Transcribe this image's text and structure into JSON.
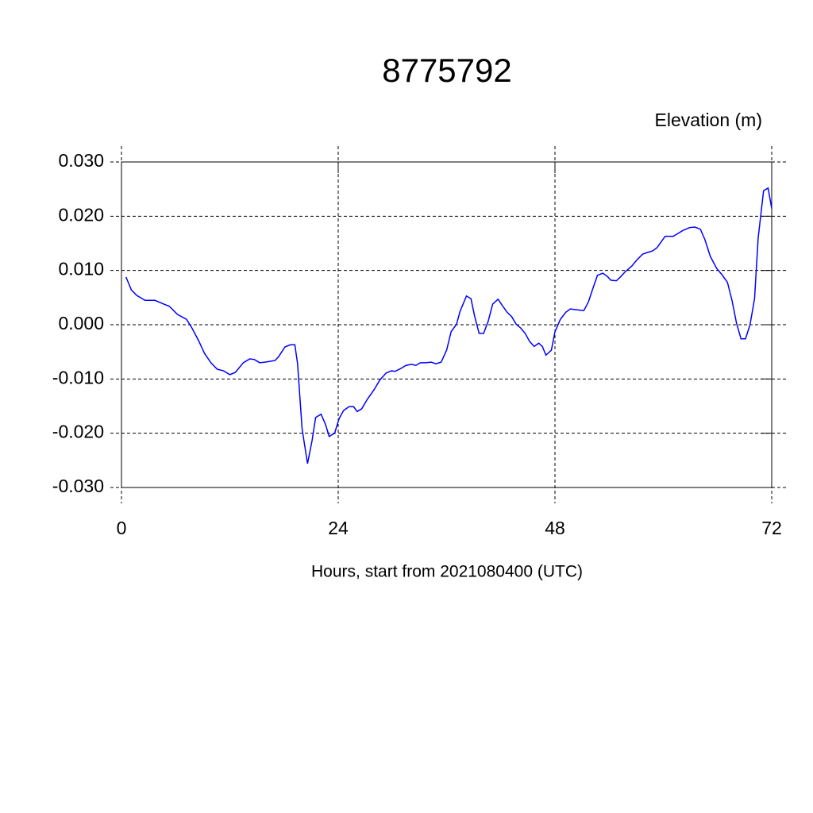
{
  "chart_data": {
    "type": "line",
    "title": "8775792",
    "subtitle": "Elevation (m)",
    "xlabel": "Hours, start from 2021080400 (UTC)",
    "xlim": [
      0,
      72
    ],
    "xticks": [
      0,
      24,
      48,
      72
    ],
    "ylim": [
      -0.03,
      0.03
    ],
    "yticks": [
      {
        "value": -0.03,
        "label": "-0.030"
      },
      {
        "value": -0.02,
        "label": "-0.020"
      },
      {
        "value": -0.01,
        "label": "-0.010"
      },
      {
        "value": 0,
        "label": "0.000"
      },
      {
        "value": 0.01,
        "label": "0.010"
      },
      {
        "value": 0.02,
        "label": "0.020"
      },
      {
        "value": 0.03,
        "label": "0.030"
      }
    ],
    "grid": true,
    "x": [
      0.5,
      1.1,
      1.7,
      2.6,
      3.7,
      4.7,
      5.3,
      6.2,
      7.2,
      7.8,
      8.5,
      9.2,
      9.9,
      10.6,
      11.3,
      12.0,
      12.6,
      13.5,
      14.2,
      14.7,
      15.3,
      15.9,
      17.0,
      17.4,
      18.1,
      18.7,
      19.2,
      19.5,
      20.0,
      20.6,
      21.1,
      21.5,
      22.1,
      22.6,
      23.0,
      23.6,
      24.1,
      24.6,
      25.2,
      25.7,
      26.1,
      26.6,
      27.2,
      28.0,
      28.6,
      29.3,
      29.9,
      30.3,
      30.9,
      31.5,
      32.1,
      32.6,
      33.1,
      33.7,
      34.3,
      34.8,
      35.4,
      36.0,
      36.5,
      37.1,
      37.5,
      38.2,
      38.7,
      39.1,
      39.6,
      40.1,
      40.6,
      41.1,
      41.7,
      42.1,
      42.7,
      43.2,
      43.7,
      44.2,
      44.7,
      45.2,
      45.7,
      46.2,
      46.6,
      47.0,
      47.6,
      48.0,
      48.6,
      49.2,
      49.7,
      50.2,
      51.2,
      51.7,
      52.2,
      52.7,
      53.3,
      53.8,
      54.2,
      54.8,
      55.3,
      55.8,
      56.5,
      57.1,
      57.7,
      58.2,
      58.8,
      59.3,
      60.2,
      61.1,
      61.5,
      62.2,
      62.9,
      63.5,
      64.1,
      64.6,
      65.2,
      65.9,
      66.5,
      67.1,
      67.6,
      68.1,
      68.6,
      69.1,
      69.6,
      70.1,
      70.5,
      71.1,
      71.6,
      72.0
    ],
    "series": [
      {
        "color": "#0000ff",
        "values": [
          0.0088,
          0.0064,
          0.0054,
          0.0045,
          0.0045,
          0.0038,
          0.0034,
          0.0019,
          0.001,
          -0.0006,
          -0.0028,
          -0.0053,
          -0.007,
          -0.0082,
          -0.0085,
          -0.0092,
          -0.0088,
          -0.007,
          -0.0063,
          -0.0064,
          -0.007,
          -0.0069,
          -0.0066,
          -0.0059,
          -0.0041,
          -0.0037,
          -0.0037,
          -0.0072,
          -0.0192,
          -0.0256,
          -0.0214,
          -0.0171,
          -0.0165,
          -0.0184,
          -0.0206,
          -0.02,
          -0.0173,
          -0.0158,
          -0.0151,
          -0.0151,
          -0.016,
          -0.0155,
          -0.0138,
          -0.0119,
          -0.0102,
          -0.0089,
          -0.0085,
          -0.0086,
          -0.0081,
          -0.0075,
          -0.0073,
          -0.0075,
          -0.007,
          -0.007,
          -0.0069,
          -0.0072,
          -0.0069,
          -0.0047,
          -0.0013,
          0.0001,
          0.0025,
          0.0053,
          0.0048,
          0.0016,
          -0.0016,
          -0.0016,
          0.0006,
          0.0038,
          0.0047,
          0.0037,
          0.0023,
          0.0015,
          0.0001,
          -0.0006,
          -0.0016,
          -0.0031,
          -0.004,
          -0.0034,
          -0.004,
          -0.0056,
          -0.0047,
          -0.0013,
          0.001,
          0.0023,
          0.0029,
          0.0028,
          0.0026,
          0.0042,
          0.0067,
          0.0091,
          0.0095,
          0.0089,
          0.0082,
          0.0081,
          0.0089,
          0.0098,
          0.0108,
          0.012,
          0.013,
          0.0133,
          0.0136,
          0.0142,
          0.0163,
          0.0163,
          0.0167,
          0.0174,
          0.0179,
          0.018,
          0.0176,
          0.0157,
          0.0126,
          0.0104,
          0.0092,
          0.0078,
          0.0045,
          0.0003,
          -0.0026,
          -0.0026,
          0.0,
          0.0048,
          0.016,
          0.0247,
          0.0252,
          0.0214
        ]
      }
    ]
  }
}
